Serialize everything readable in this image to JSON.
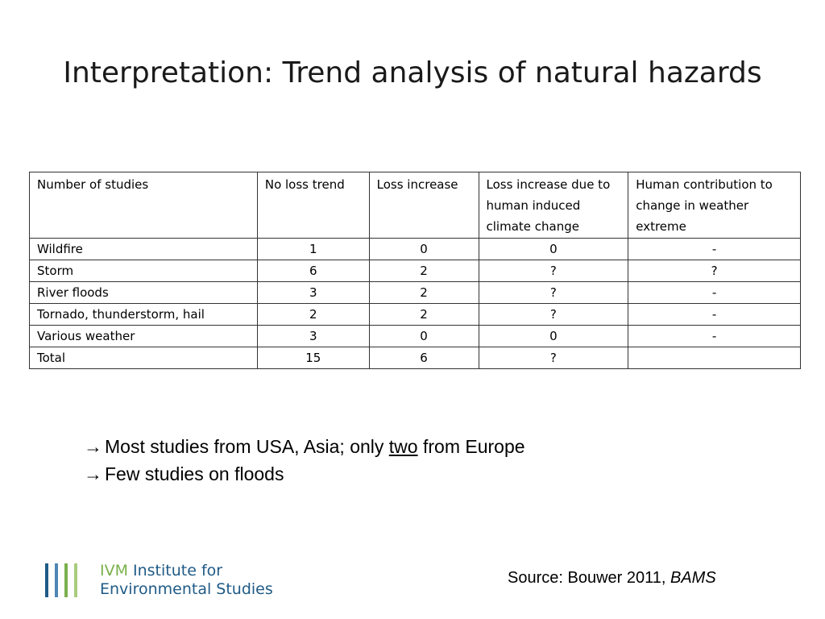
{
  "title": "Interpretation: Trend analysis of natural hazards",
  "table": {
    "headers": [
      "Number of studies",
      "No loss trend",
      "Loss increase",
      "Loss increase due to human induced climate change",
      "Human contribution to  change in weather extreme"
    ],
    "rows": [
      [
        "Wildfire",
        "1",
        "0",
        "0",
        "-"
      ],
      [
        "Storm",
        "6",
        "2",
        "?",
        "?"
      ],
      [
        "River floods",
        "3",
        "2",
        "?",
        "-"
      ],
      [
        "Tornado, thunderstorm, hail",
        "2",
        "2",
        "?",
        "-"
      ],
      [
        "Various weather",
        "3",
        "0",
        "0",
        "-"
      ],
      [
        "Total",
        "15",
        "6",
        "?",
        ""
      ]
    ]
  },
  "bullets": {
    "arrow": "→",
    "b1": {
      "pre": "Most studies from USA, Asia; only ",
      "underline": "two",
      "post": " from Europe"
    },
    "b2": "Few studies on floods"
  },
  "logo": {
    "abbr": "IVM",
    "line1": "Institute for",
    "line2": "Environmental Studies",
    "bar_colors": [
      "#1f5a86",
      "#4f86b4",
      "#7ab04c",
      "#a9cc7c"
    ]
  },
  "source": {
    "prefix": "Source: Bouwer 2011, ",
    "journal": "BAMS"
  }
}
